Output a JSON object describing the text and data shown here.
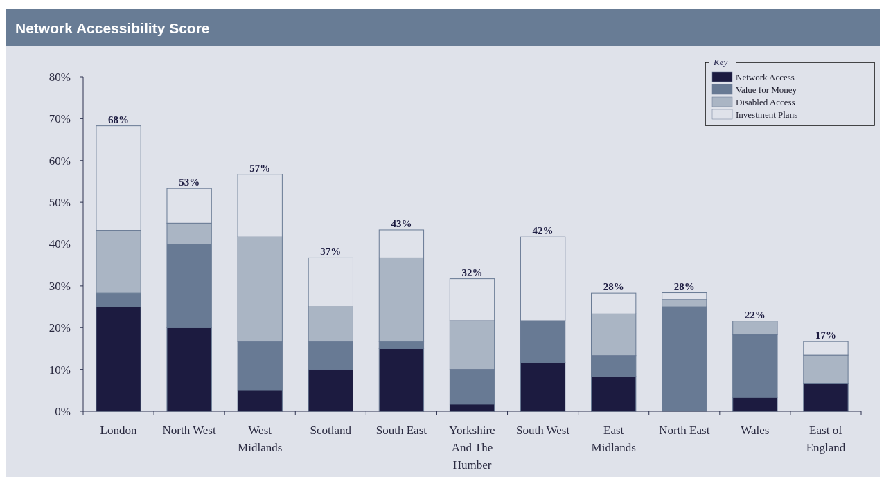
{
  "chart_data": {
    "type": "bar",
    "title": "Network Accessibility Score",
    "stacked": true,
    "categories": [
      "London",
      "North West",
      "West Midlands",
      "Scotland",
      "South East",
      "Yorkshire And The Humber",
      "South West",
      "East Midlands",
      "North East",
      "Wales",
      "East of England"
    ],
    "series": [
      {
        "name": "Network Access",
        "color": "#1c1b40",
        "values": [
          25,
          20,
          5,
          10,
          15,
          1.7,
          11.7,
          8.3,
          0,
          3.3,
          6.7
        ]
      },
      {
        "name": "Value for Money",
        "color": "#687a94",
        "values": [
          3.3,
          20,
          11.7,
          6.7,
          1.7,
          8.3,
          10,
          5,
          25,
          15,
          0
        ]
      },
      {
        "name": "Disabled Access",
        "color": "#aab5c4",
        "values": [
          15,
          5,
          25,
          8.3,
          20,
          11.7,
          0,
          10,
          1.7,
          3.3,
          6.7
        ]
      },
      {
        "name": "Investment Plans",
        "color": "#dfe2ea",
        "values": [
          25,
          8.3,
          15,
          11.7,
          6.7,
          10,
          20,
          5,
          1.7,
          0,
          3.3
        ]
      }
    ],
    "totals": [
      "68%",
      "53%",
      "57%",
      "37%",
      "43%",
      "32%",
      "42%",
      "28%",
      "28%",
      "22%",
      "17%"
    ],
    "legend_title": "Key",
    "legend": "top right",
    "grid": false,
    "ylim": [
      0,
      80
    ],
    "yticks": [
      {
        "value": 0,
        "label": "0%"
      },
      {
        "value": 10,
        "label": "10%"
      },
      {
        "value": 20,
        "label": "20%"
      },
      {
        "value": 30,
        "label": "30%"
      },
      {
        "value": 40,
        "label": "40%"
      },
      {
        "value": 50,
        "label": "50%"
      },
      {
        "value": 60,
        "label": "60%"
      },
      {
        "value": 70,
        "label": "70%"
      },
      {
        "value": 80,
        "label": "80%"
      }
    ]
  }
}
